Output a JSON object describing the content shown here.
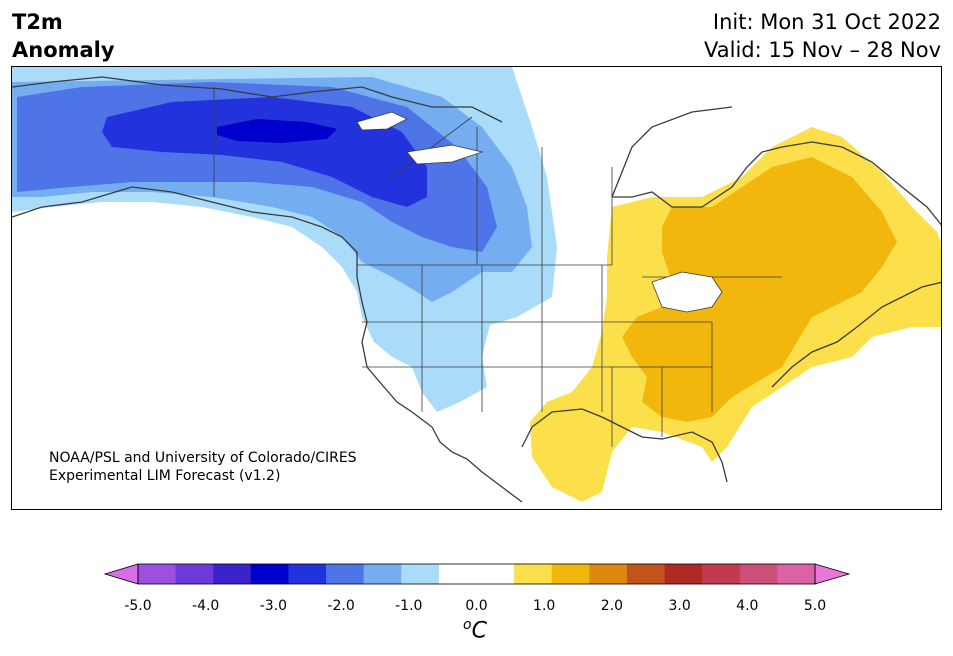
{
  "header": {
    "variable": "T2m",
    "subtitle": "Anomaly",
    "init": "Init: Mon 31 Oct 2022",
    "valid": "Valid: 15 Nov – 28 Nov"
  },
  "credit": {
    "line1": "NOAA/PSL and University of Colorado/CIRES",
    "line2": "Experimental LIM Forecast (v1.2)"
  },
  "colorbar": {
    "unit_symbol": "C",
    "unit_prefix": "o",
    "ticks": [
      "-5.0",
      "-4.0",
      "-3.0",
      "-2.0",
      "-1.0",
      "0.0",
      "1.0",
      "2.0",
      "3.0",
      "4.0",
      "5.0"
    ],
    "extend_low_color": "#d86ee8",
    "extend_high_color": "#e878d8",
    "bins": [
      "#d86ee8",
      "#9d4fe0",
      "#6b3ad8",
      "#3a22cc",
      "#0000cc",
      "#2233dd",
      "#4f74e8",
      "#74aef0",
      "#aadcfa",
      "#ffffff",
      "#ffffff",
      "#fbe04c",
      "#f2b70c",
      "#dd8811",
      "#c2531a",
      "#b02a24",
      "#c23a4e",
      "#cc4f78",
      "#dc62a8",
      "#e878d8"
    ]
  },
  "legend_levels": {
    "cold": [
      "#aadcfa",
      "#74aef0",
      "#4f74e8",
      "#2233dd",
      "#0000cc"
    ],
    "warm": [
      "#fbe04c",
      "#f2b70c"
    ]
  }
}
